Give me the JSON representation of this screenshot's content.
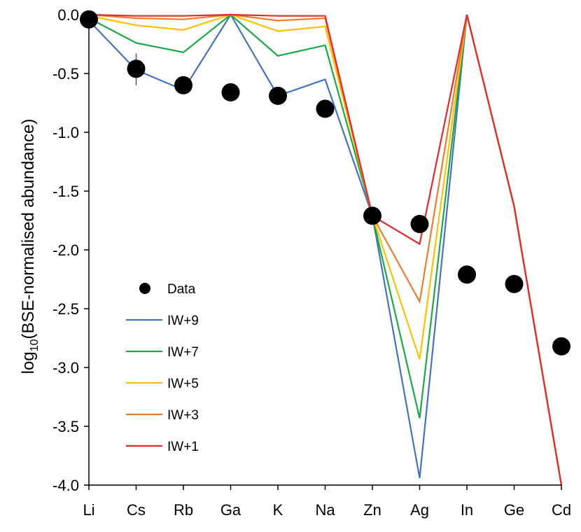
{
  "chart_data": {
    "type": "line",
    "categories": [
      "Li",
      "Cs",
      "Rb",
      "Ga",
      "K",
      "Na",
      "Zn",
      "Ag",
      "In",
      "Ge",
      "Cd"
    ],
    "ylabel": {
      "prefix": "log",
      "subscript": "10",
      "suffix": "(BSE-normalised abundance)"
    },
    "ylim": [
      -4.0,
      0.0
    ],
    "yticks": [
      "0.0",
      "-0.5",
      "-1.0",
      "-1.5",
      "-2.0",
      "-2.5",
      "-3.0",
      "-3.5",
      "-4.0"
    ],
    "grid": false,
    "legend_position": "bottom-left",
    "data_points": {
      "name": "Data",
      "values": [
        -0.04,
        -0.46,
        -0.6,
        -0.66,
        -0.69,
        -0.8,
        -1.71,
        -1.78,
        -2.21,
        -2.29,
        -2.82
      ],
      "error_bars": [
        {
          "index": 1,
          "low": -0.6,
          "high": -0.33
        }
      ]
    },
    "series": [
      {
        "name": "IW+9",
        "color": "#4472c4",
        "values": [
          -0.05,
          -0.47,
          -0.64,
          0.0,
          -0.69,
          -0.55,
          -1.71,
          -3.94,
          0.0,
          -1.63,
          -4.0
        ]
      },
      {
        "name": "IW+7",
        "color": "#1aaa45",
        "values": [
          -0.03,
          -0.24,
          -0.32,
          0.0,
          -0.35,
          -0.26,
          -1.71,
          -3.43,
          0.0,
          -1.63,
          -4.0
        ]
      },
      {
        "name": "IW+5",
        "color": "#ffc000",
        "values": [
          -0.01,
          -0.09,
          -0.13,
          0.0,
          -0.14,
          -0.1,
          -1.71,
          -2.93,
          0.0,
          -1.63,
          -4.0
        ]
      },
      {
        "name": "IW+3",
        "color": "#ed7d31",
        "values": [
          0.0,
          -0.03,
          -0.04,
          0.0,
          -0.05,
          -0.03,
          -1.71,
          -2.44,
          0.0,
          -1.63,
          -4.0
        ]
      },
      {
        "name": "IW+1",
        "color": "#e8282b",
        "values": [
          0.0,
          -0.01,
          -0.01,
          0.0,
          -0.01,
          -0.01,
          -1.71,
          -1.95,
          0.0,
          -1.63,
          -4.0
        ]
      }
    ]
  }
}
